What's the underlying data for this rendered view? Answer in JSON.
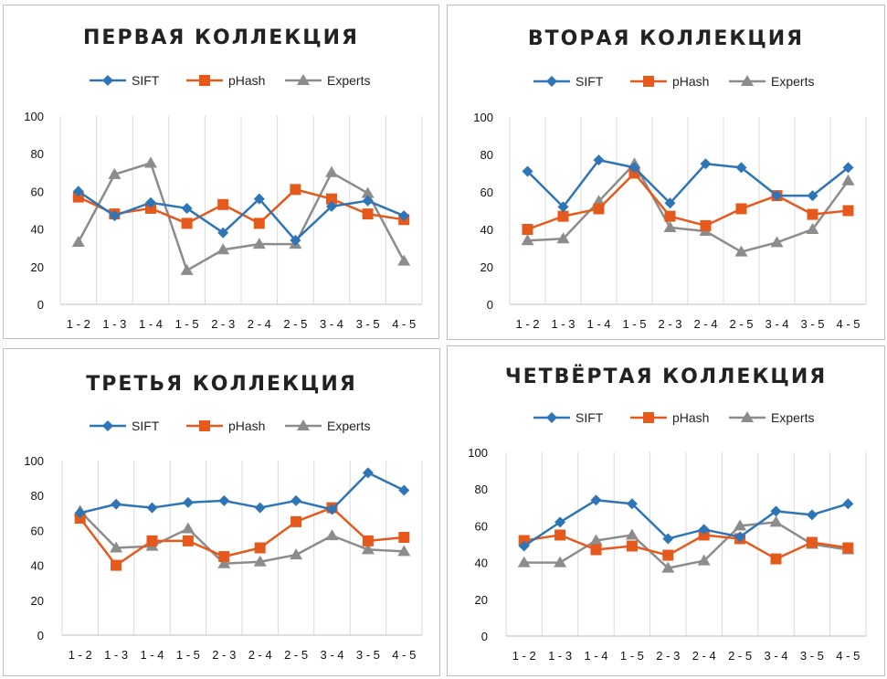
{
  "colors": {
    "SIFT": "#2e75b6",
    "pHash": "#e55a1c",
    "Experts": "#8c8c8c"
  },
  "chart_data": [
    {
      "type": "line",
      "title": "ПЕРВАЯ КОЛЛЕКЦИЯ",
      "categories": [
        "1 - 2",
        "1 - 3",
        "1 - 4",
        "1 - 5",
        "2 - 3",
        "2 - 4",
        "2 - 5",
        "3 - 4",
        "3 - 5",
        "4 - 5"
      ],
      "yticks": [
        "0",
        "20",
        "40",
        "60",
        "80",
        "100"
      ],
      "ylim": [
        0,
        100
      ],
      "series": [
        {
          "name": "SIFT",
          "values": [
            60,
            47,
            54,
            51,
            38,
            56,
            34,
            52,
            55,
            47
          ]
        },
        {
          "name": "pHash",
          "values": [
            57,
            48,
            51,
            43,
            53,
            43,
            61,
            56,
            48,
            45
          ]
        },
        {
          "name": "Experts",
          "values": [
            33,
            69,
            75,
            18,
            29,
            32,
            32,
            70,
            59,
            23
          ]
        }
      ]
    },
    {
      "type": "line",
      "title": "ВТОРАЯ КОЛЛЕКЦИЯ",
      "categories": [
        "1 - 2",
        "1 - 3",
        "1 - 4",
        "1 - 5",
        "2 - 3",
        "2 - 4",
        "2 - 5",
        "3 - 4",
        "3 - 5",
        "4 - 5"
      ],
      "yticks": [
        "0",
        "20",
        "40",
        "60",
        "80",
        "100"
      ],
      "ylim": [
        0,
        100
      ],
      "series": [
        {
          "name": "SIFT",
          "values": [
            71,
            52,
            77,
            73,
            54,
            75,
            73,
            58,
            58,
            73
          ]
        },
        {
          "name": "pHash",
          "values": [
            40,
            47,
            51,
            70,
            47,
            42,
            51,
            58,
            48,
            50
          ]
        },
        {
          "name": "Experts",
          "values": [
            34,
            35,
            55,
            75,
            41,
            39,
            28,
            33,
            40,
            66
          ]
        }
      ]
    },
    {
      "type": "line",
      "title": "ТРЕТЬЯ КОЛЛЕКЦИЯ",
      "categories": [
        "1 - 2",
        "1 - 3",
        "1 - 4",
        "1 - 5",
        "2 - 3",
        "2 - 4",
        "2 - 5",
        "3 - 4",
        "3 - 5",
        "4 - 5"
      ],
      "yticks": [
        "0",
        "20",
        "40",
        "60",
        "80",
        "100"
      ],
      "ylim": [
        0,
        100
      ],
      "series": [
        {
          "name": "SIFT",
          "values": [
            70,
            75,
            73,
            76,
            77,
            73,
            77,
            72,
            93,
            83
          ]
        },
        {
          "name": "pHash",
          "values": [
            67,
            40,
            54,
            54,
            45,
            50,
            65,
            73,
            54,
            56
          ]
        },
        {
          "name": "Experts",
          "values": [
            71,
            50,
            51,
            61,
            41,
            42,
            46,
            57,
            49,
            48
          ]
        }
      ]
    },
    {
      "type": "line",
      "title": "ЧЕТВЁРТАЯ КОЛЛЕКЦИЯ",
      "categories": [
        "1 - 2",
        "1 - 3",
        "1 - 4",
        "1 - 5",
        "2 - 3",
        "2 - 4",
        "2 - 5",
        "3 - 4",
        "3 - 5",
        "4 - 5"
      ],
      "yticks": [
        "0",
        "20",
        "40",
        "60",
        "80",
        "100"
      ],
      "ylim": [
        0,
        100
      ],
      "series": [
        {
          "name": "SIFT",
          "values": [
            49,
            62,
            74,
            72,
            53,
            58,
            54,
            68,
            66,
            72
          ]
        },
        {
          "name": "pHash",
          "values": [
            52,
            55,
            47,
            49,
            44,
            55,
            53,
            42,
            51,
            48
          ]
        },
        {
          "name": "Experts",
          "values": [
            40,
            40,
            52,
            55,
            37,
            41,
            60,
            62,
            50,
            47
          ]
        }
      ]
    }
  ]
}
